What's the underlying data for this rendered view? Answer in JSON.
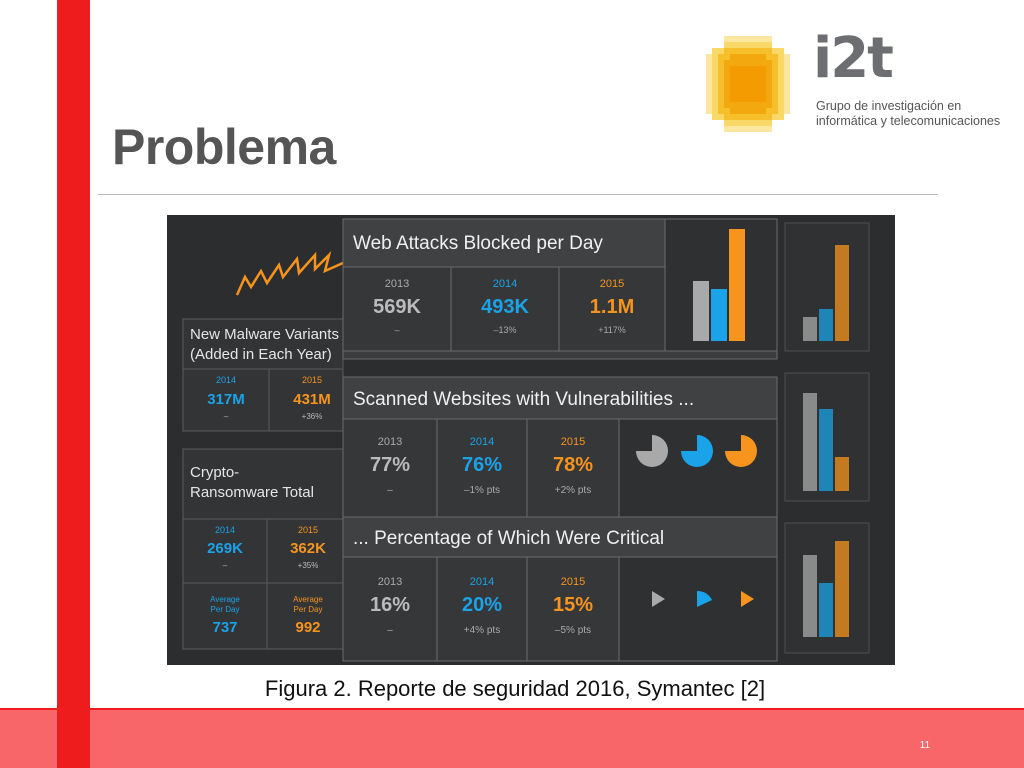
{
  "slide": {
    "title": "Problema",
    "page_number": "11",
    "caption": "Figura 2. Reporte de seguridad 2016, Symantec [2]"
  },
  "logo": {
    "name": "i2t",
    "subtitle_line1": "Grupo de investigación en",
    "subtitle_line2": "informática y telecomunicaciones"
  },
  "figure": {
    "malware": {
      "title_line1": "New Malware Variants",
      "title_line2": "(Added in Each Year)",
      "y2014": "2014",
      "v2014": "317M",
      "c2014": "–",
      "y2015": "2015",
      "v2015": "431M",
      "c2015": "+36%"
    },
    "crypto": {
      "title_line1": "Crypto-",
      "title_line2": "Ransomware Total",
      "y2014": "2014",
      "v2014": "269K",
      "c2014": "–",
      "y2015": "2015",
      "v2015": "362K",
      "c2015": "+35%",
      "avg_label_1": "Average",
      "avg_label_2": "Per Day",
      "avg2014": "737",
      "avg2015": "992"
    },
    "web": {
      "title": "Web Attacks Blocked per Day",
      "y2013": "2013",
      "v2013": "569K",
      "c2013": "–",
      "y2014": "2014",
      "v2014": "493K",
      "c2014": "–13%",
      "y2015": "2015",
      "v2015": "1.1M",
      "c2015": "+117%"
    },
    "scanned": {
      "title": "Scanned Websites with Vulnerabilities ...",
      "y2013": "2013",
      "v2013": "77%",
      "c2013": "–",
      "y2014": "2014",
      "v2014": "76%",
      "c2014": "–1% pts",
      "y2015": "2015",
      "v2015": "78%",
      "c2015": "+2% pts"
    },
    "critical": {
      "title": "... Percentage of Which Were Critical",
      "y2013": "2013",
      "v2013": "16%",
      "c2013": "–",
      "y2014": "2014",
      "v2014": "20%",
      "c2014": "+4% pts",
      "y2015": "2015",
      "v2015": "15%",
      "c2015": "–5% pts"
    },
    "colors": {
      "gray": "#a9a9a9",
      "blue": "#1aa3e8",
      "orange": "#f7941d",
      "panel": "#3a3b3d",
      "border": "#5a5b5d"
    }
  }
}
